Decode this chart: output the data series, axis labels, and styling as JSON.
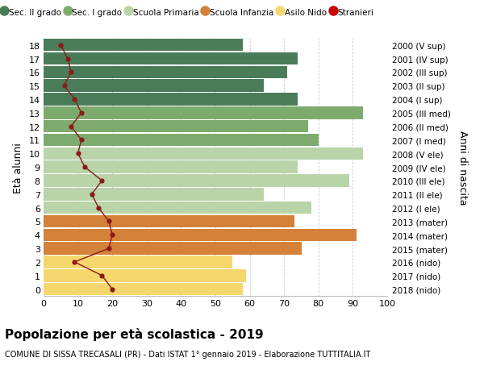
{
  "ages": [
    18,
    17,
    16,
    15,
    14,
    13,
    12,
    11,
    10,
    9,
    8,
    7,
    6,
    5,
    4,
    3,
    2,
    1,
    0
  ],
  "anni_nascita": [
    "2000 (V sup)",
    "2001 (IV sup)",
    "2002 (III sup)",
    "2003 (II sup)",
    "2004 (I sup)",
    "2005 (III med)",
    "2006 (II med)",
    "2007 (I med)",
    "2008 (V ele)",
    "2009 (IV ele)",
    "2010 (III ele)",
    "2011 (II ele)",
    "2012 (I ele)",
    "2013 (mater)",
    "2014 (mater)",
    "2015 (mater)",
    "2016 (nido)",
    "2017 (nido)",
    "2018 (nido)"
  ],
  "bar_values": [
    58,
    74,
    71,
    64,
    74,
    93,
    77,
    80,
    93,
    74,
    89,
    64,
    78,
    73,
    91,
    75,
    55,
    59,
    58
  ],
  "bar_colors": [
    "#4a7c59",
    "#4a7c59",
    "#4a7c59",
    "#4a7c59",
    "#4a7c59",
    "#7dab6e",
    "#7dab6e",
    "#7dab6e",
    "#b8d4a8",
    "#b8d4a8",
    "#b8d4a8",
    "#b8d4a8",
    "#b8d4a8",
    "#d4813a",
    "#d4813a",
    "#d4813a",
    "#f5d76e",
    "#f5d76e",
    "#f5d76e"
  ],
  "stranieri_values": [
    5,
    7,
    8,
    6,
    9,
    11,
    8,
    11,
    10,
    12,
    17,
    14,
    16,
    19,
    20,
    19,
    9,
    17,
    20
  ],
  "stranieri_color": "#8b1a1a",
  "legend_labels": [
    "Sec. II grado",
    "Sec. I grado",
    "Scuola Primaria",
    "Scuola Infanzia",
    "Asilo Nido",
    "Stranieri"
  ],
  "legend_colors": [
    "#4a7c59",
    "#7dab6e",
    "#b8d4a8",
    "#d4813a",
    "#f5d76e",
    "#cc0000"
  ],
  "ylabel_left": "Età alunni",
  "ylabel_right": "Anni di nascita",
  "title": "Popolazione per età scolastica - 2019",
  "subtitle": "COMUNE DI SISSA TRECASALI (PR) - Dati ISTAT 1° gennaio 2019 - Elaborazione TUTTITALIA.IT",
  "xlim": [
    0,
    100
  ],
  "xticks": [
    0,
    10,
    20,
    30,
    40,
    50,
    60,
    70,
    80,
    90,
    100
  ],
  "bg_color": "#ffffff",
  "grid_color": "#cccccc"
}
